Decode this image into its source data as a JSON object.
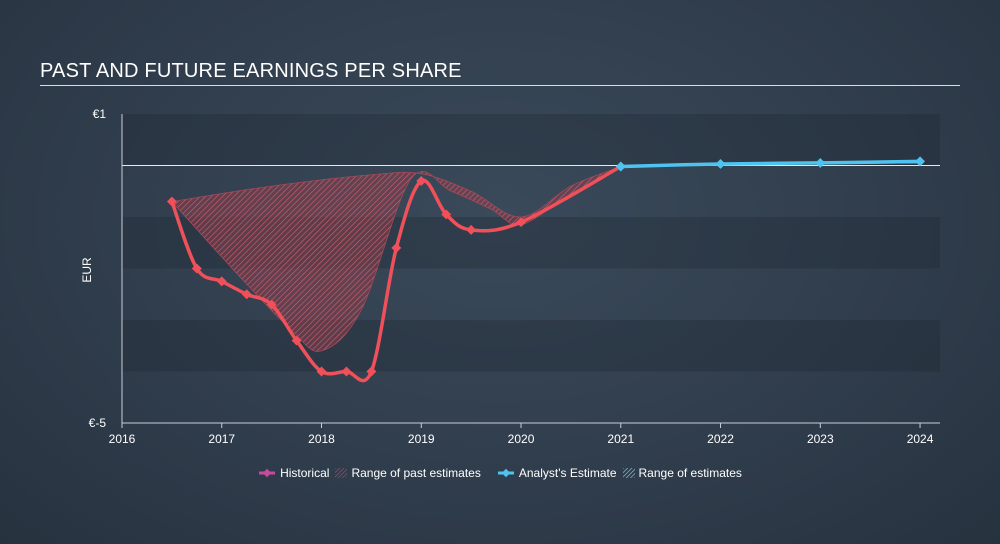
{
  "title": "PAST AND FUTURE EARNINGS PER SHARE",
  "colors": {
    "historical": "#f0505a",
    "past_range": "#b54a5a",
    "estimate": "#4fc3f0",
    "estimate_range": "#8fd3f0",
    "legend_historical": "#c94a9a"
  },
  "legend": {
    "historical": "Historical",
    "past_range": "Range of past estimates",
    "estimate": "Analyst's Estimate",
    "estimate_range": "Range of estimates"
  },
  "chart_data": {
    "type": "line",
    "xlabel": "",
    "ylabel": "EUR",
    "ylim": [
      -5,
      1
    ],
    "xlim": [
      2016,
      2024.2
    ],
    "y_tick_labels": [
      {
        "value": 1,
        "label": "€1"
      },
      {
        "value": -5,
        "label": "€-5"
      }
    ],
    "x_ticks": [
      2016,
      2017,
      2018,
      2019,
      2020,
      2021,
      2022,
      2023,
      2024
    ],
    "baseline": 0,
    "series": [
      {
        "name": "Historical",
        "points": [
          {
            "x": 2016.5,
            "y": -0.7
          },
          {
            "x": 2016.75,
            "y": -2.0
          },
          {
            "x": 2017.0,
            "y": -2.25
          },
          {
            "x": 2017.25,
            "y": -2.5
          },
          {
            "x": 2017.5,
            "y": -2.7
          },
          {
            "x": 2017.75,
            "y": -3.4
          },
          {
            "x": 2018.0,
            "y": -4.0
          },
          {
            "x": 2018.25,
            "y": -4.0
          },
          {
            "x": 2018.5,
            "y": -4.0
          },
          {
            "x": 2018.75,
            "y": -1.6
          },
          {
            "x": 2019.0,
            "y": -0.3
          },
          {
            "x": 2019.25,
            "y": -0.95
          },
          {
            "x": 2019.5,
            "y": -1.25
          },
          {
            "x": 2020.0,
            "y": -1.1
          },
          {
            "x": 2021.0,
            "y": -0.02
          }
        ]
      },
      {
        "name": "Analyst's Estimate",
        "points": [
          {
            "x": 2021.0,
            "y": -0.02
          },
          {
            "x": 2022.0,
            "y": 0.03
          },
          {
            "x": 2023.0,
            "y": 0.05
          },
          {
            "x": 2024.0,
            "y": 0.08
          }
        ]
      }
    ],
    "past_estimate_range": {
      "upper": [
        {
          "x": 2016.5,
          "y": -0.7
        },
        {
          "x": 2017.5,
          "y": -0.4
        },
        {
          "x": 2018.5,
          "y": -0.18
        },
        {
          "x": 2019.0,
          "y": -0.16
        },
        {
          "x": 2019.5,
          "y": -0.5
        },
        {
          "x": 2020.0,
          "y": -1.0
        },
        {
          "x": 2020.5,
          "y": -0.4
        },
        {
          "x": 2021.0,
          "y": -0.02
        }
      ],
      "lower": [
        {
          "x": 2016.5,
          "y": -0.7
        },
        {
          "x": 2017.2,
          "y": -2.2
        },
        {
          "x": 2017.7,
          "y": -3.2
        },
        {
          "x": 2018.0,
          "y": -3.6
        },
        {
          "x": 2018.4,
          "y": -2.8
        },
        {
          "x": 2018.9,
          "y": -0.25
        },
        {
          "x": 2019.3,
          "y": -0.5
        },
        {
          "x": 2019.7,
          "y": -0.85
        },
        {
          "x": 2020.0,
          "y": -1.15
        },
        {
          "x": 2020.5,
          "y": -0.55
        },
        {
          "x": 2021.0,
          "y": -0.02
        }
      ]
    },
    "estimate_range": {
      "upper": [
        {
          "x": 2021.0,
          "y": -0.01
        },
        {
          "x": 2022.0,
          "y": 0.04
        },
        {
          "x": 2023.0,
          "y": 0.07
        },
        {
          "x": 2024.0,
          "y": 0.1
        }
      ],
      "lower": [
        {
          "x": 2021.0,
          "y": -0.03
        },
        {
          "x": 2022.0,
          "y": 0.02
        },
        {
          "x": 2023.0,
          "y": 0.03
        },
        {
          "x": 2024.0,
          "y": 0.05
        }
      ]
    }
  }
}
